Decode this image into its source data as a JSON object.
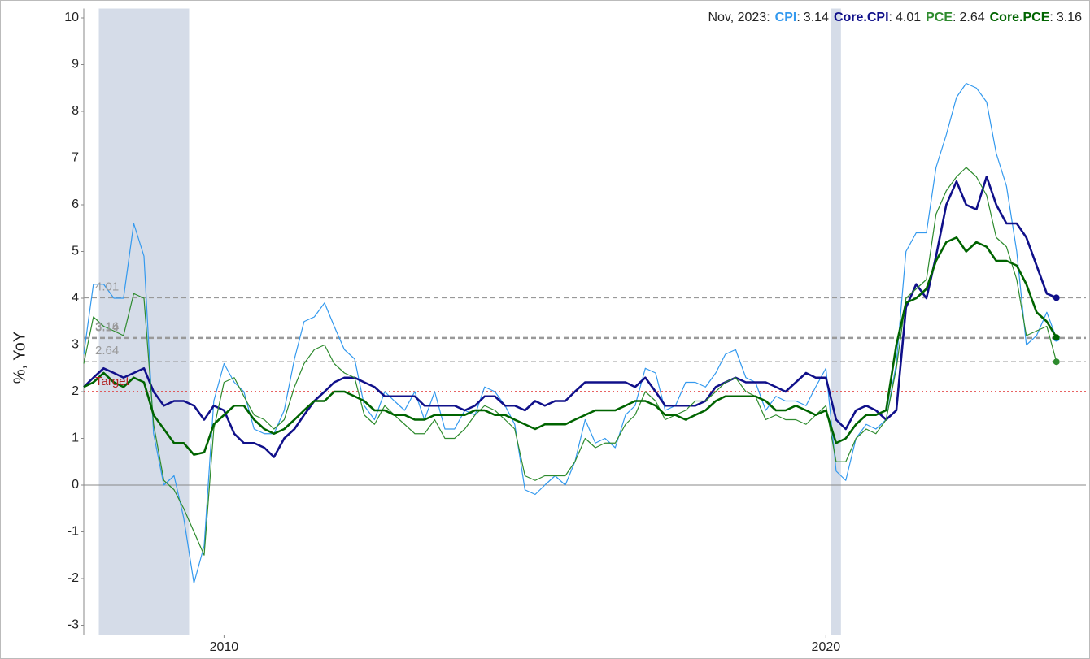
{
  "chart_data": {
    "type": "line",
    "y_label": "%, YoY",
    "latest_label": "Nov, 2023",
    "separator": ":",
    "x": [
      2007.67,
      2007.83,
      2008.0,
      2008.17,
      2008.33,
      2008.5,
      2008.67,
      2008.83,
      2009.0,
      2009.17,
      2009.33,
      2009.5,
      2009.67,
      2009.83,
      2010.0,
      2010.17,
      2010.33,
      2010.5,
      2010.67,
      2010.83,
      2011.0,
      2011.17,
      2011.33,
      2011.5,
      2011.67,
      2011.83,
      2012.0,
      2012.17,
      2012.33,
      2012.5,
      2012.67,
      2012.83,
      2013.0,
      2013.17,
      2013.33,
      2013.5,
      2013.67,
      2013.83,
      2014.0,
      2014.17,
      2014.33,
      2014.5,
      2014.67,
      2014.83,
      2015.0,
      2015.17,
      2015.33,
      2015.5,
      2015.67,
      2015.83,
      2016.0,
      2016.17,
      2016.33,
      2016.5,
      2016.67,
      2016.83,
      2017.0,
      2017.17,
      2017.33,
      2017.5,
      2017.67,
      2017.83,
      2018.0,
      2018.17,
      2018.33,
      2018.5,
      2018.67,
      2018.83,
      2019.0,
      2019.17,
      2019.33,
      2019.5,
      2019.67,
      2019.83,
      2020.0,
      2020.17,
      2020.33,
      2020.5,
      2020.67,
      2020.83,
      2021.0,
      2021.17,
      2021.33,
      2021.5,
      2021.67,
      2021.83,
      2022.0,
      2022.17,
      2022.33,
      2022.5,
      2022.67,
      2022.83,
      2023.0,
      2023.17,
      2023.33,
      2023.5,
      2023.67,
      2023.83
    ],
    "series": [
      {
        "name": "CPI",
        "color": "#3399ee",
        "line_width": 1.2,
        "values": [
          2.8,
          4.3,
          4.3,
          4.0,
          4.0,
          5.6,
          4.9,
          1.1,
          0.0,
          0.2,
          -0.7,
          -2.1,
          -1.3,
          1.8,
          2.6,
          2.2,
          2.0,
          1.2,
          1.1,
          1.1,
          1.6,
          2.7,
          3.5,
          3.6,
          3.9,
          3.4,
          2.9,
          2.7,
          1.7,
          1.4,
          2.0,
          1.8,
          1.6,
          2.0,
          1.4,
          2.0,
          1.2,
          1.2,
          1.6,
          1.5,
          2.1,
          2.0,
          1.7,
          1.3,
          -0.1,
          -0.2,
          0.0,
          0.2,
          0.0,
          0.5,
          1.4,
          0.9,
          1.0,
          0.8,
          1.5,
          1.7,
          2.5,
          2.4,
          1.6,
          1.7,
          2.2,
          2.2,
          2.1,
          2.4,
          2.8,
          2.9,
          2.3,
          2.2,
          1.6,
          1.9,
          1.8,
          1.8,
          1.7,
          2.1,
          2.5,
          0.3,
          0.1,
          1.0,
          1.3,
          1.2,
          1.4,
          2.6,
          5.0,
          5.4,
          5.4,
          6.8,
          7.5,
          8.3,
          8.6,
          8.5,
          8.2,
          7.1,
          6.4,
          5.0,
          3.0,
          3.2,
          3.7,
          3.14
        ]
      },
      {
        "name": "Core.CPI",
        "color": "#10108a",
        "line_width": 2.6,
        "values": [
          2.1,
          2.3,
          2.5,
          2.4,
          2.3,
          2.4,
          2.5,
          2.0,
          1.7,
          1.8,
          1.8,
          1.7,
          1.4,
          1.7,
          1.6,
          1.1,
          0.9,
          0.9,
          0.8,
          0.6,
          1.0,
          1.2,
          1.5,
          1.8,
          2.0,
          2.2,
          2.3,
          2.3,
          2.2,
          2.1,
          1.9,
          1.9,
          1.9,
          1.9,
          1.7,
          1.7,
          1.7,
          1.7,
          1.6,
          1.7,
          1.9,
          1.9,
          1.7,
          1.7,
          1.6,
          1.8,
          1.7,
          1.8,
          1.8,
          2.0,
          2.2,
          2.2,
          2.2,
          2.2,
          2.2,
          2.1,
          2.3,
          2.0,
          1.7,
          1.7,
          1.7,
          1.7,
          1.8,
          2.1,
          2.2,
          2.3,
          2.2,
          2.2,
          2.2,
          2.1,
          2.0,
          2.2,
          2.4,
          2.3,
          2.3,
          1.4,
          1.2,
          1.6,
          1.7,
          1.6,
          1.4,
          1.6,
          3.8,
          4.3,
          4.0,
          4.9,
          6.0,
          6.5,
          6.0,
          5.9,
          6.6,
          6.0,
          5.6,
          5.6,
          5.3,
          4.7,
          4.1,
          4.01
        ]
      },
      {
        "name": "PCE",
        "color": "#2e8b2e",
        "line_width": 1.2,
        "values": [
          2.6,
          3.6,
          3.4,
          3.3,
          3.2,
          4.1,
          4.0,
          1.3,
          0.1,
          -0.1,
          -0.5,
          -1.0,
          -1.5,
          1.2,
          2.2,
          2.3,
          1.9,
          1.5,
          1.4,
          1.2,
          1.4,
          2.1,
          2.6,
          2.9,
          3.0,
          2.6,
          2.4,
          2.3,
          1.5,
          1.3,
          1.7,
          1.5,
          1.3,
          1.1,
          1.1,
          1.4,
          1.0,
          1.0,
          1.2,
          1.5,
          1.7,
          1.6,
          1.4,
          1.2,
          0.2,
          0.1,
          0.2,
          0.2,
          0.2,
          0.5,
          1.0,
          0.8,
          0.9,
          0.9,
          1.3,
          1.5,
          2.0,
          1.8,
          1.4,
          1.5,
          1.6,
          1.8,
          1.8,
          2.0,
          2.2,
          2.3,
          2.0,
          1.9,
          1.4,
          1.5,
          1.4,
          1.4,
          1.3,
          1.5,
          1.7,
          0.5,
          0.5,
          1.0,
          1.2,
          1.1,
          1.4,
          2.5,
          4.0,
          4.2,
          4.4,
          5.8,
          6.3,
          6.6,
          6.8,
          6.6,
          6.2,
          5.3,
          5.1,
          4.4,
          3.2,
          3.3,
          3.4,
          2.64
        ]
      },
      {
        "name": "Core.PCE",
        "color": "#006400",
        "line_width": 2.6,
        "values": [
          2.1,
          2.2,
          2.4,
          2.2,
          2.1,
          2.3,
          2.2,
          1.5,
          1.2,
          0.9,
          0.9,
          0.65,
          0.7,
          1.3,
          1.5,
          1.7,
          1.7,
          1.4,
          1.2,
          1.1,
          1.2,
          1.4,
          1.6,
          1.8,
          1.8,
          2.0,
          2.0,
          1.9,
          1.8,
          1.6,
          1.6,
          1.5,
          1.5,
          1.4,
          1.4,
          1.5,
          1.5,
          1.5,
          1.5,
          1.6,
          1.6,
          1.5,
          1.5,
          1.4,
          1.3,
          1.2,
          1.3,
          1.3,
          1.3,
          1.4,
          1.5,
          1.6,
          1.6,
          1.6,
          1.7,
          1.8,
          1.8,
          1.7,
          1.5,
          1.5,
          1.4,
          1.5,
          1.6,
          1.8,
          1.9,
          1.9,
          1.9,
          1.9,
          1.8,
          1.6,
          1.6,
          1.7,
          1.6,
          1.5,
          1.6,
          0.9,
          1.0,
          1.3,
          1.5,
          1.5,
          1.6,
          3.0,
          3.9,
          4.0,
          4.2,
          4.8,
          5.2,
          5.3,
          5.0,
          5.2,
          5.1,
          4.8,
          4.8,
          4.7,
          4.3,
          3.7,
          3.5,
          3.16
        ]
      }
    ],
    "recessions": [
      [
        2007.92,
        2009.42
      ],
      [
        2020.08,
        2020.25
      ]
    ],
    "reference_lines": [
      4.01,
      3.16,
      3.14,
      2.64
    ],
    "target": {
      "value": 2,
      "label": "Target"
    },
    "xlim": [
      2007.67,
      2024.32
    ],
    "xticks": [
      2010,
      2020
    ],
    "ylim": [
      -3.2,
      10.2
    ],
    "yticks": [
      -3,
      -2,
      -1,
      0,
      1,
      2,
      3,
      4,
      5,
      6,
      7,
      8,
      9,
      10
    ]
  }
}
